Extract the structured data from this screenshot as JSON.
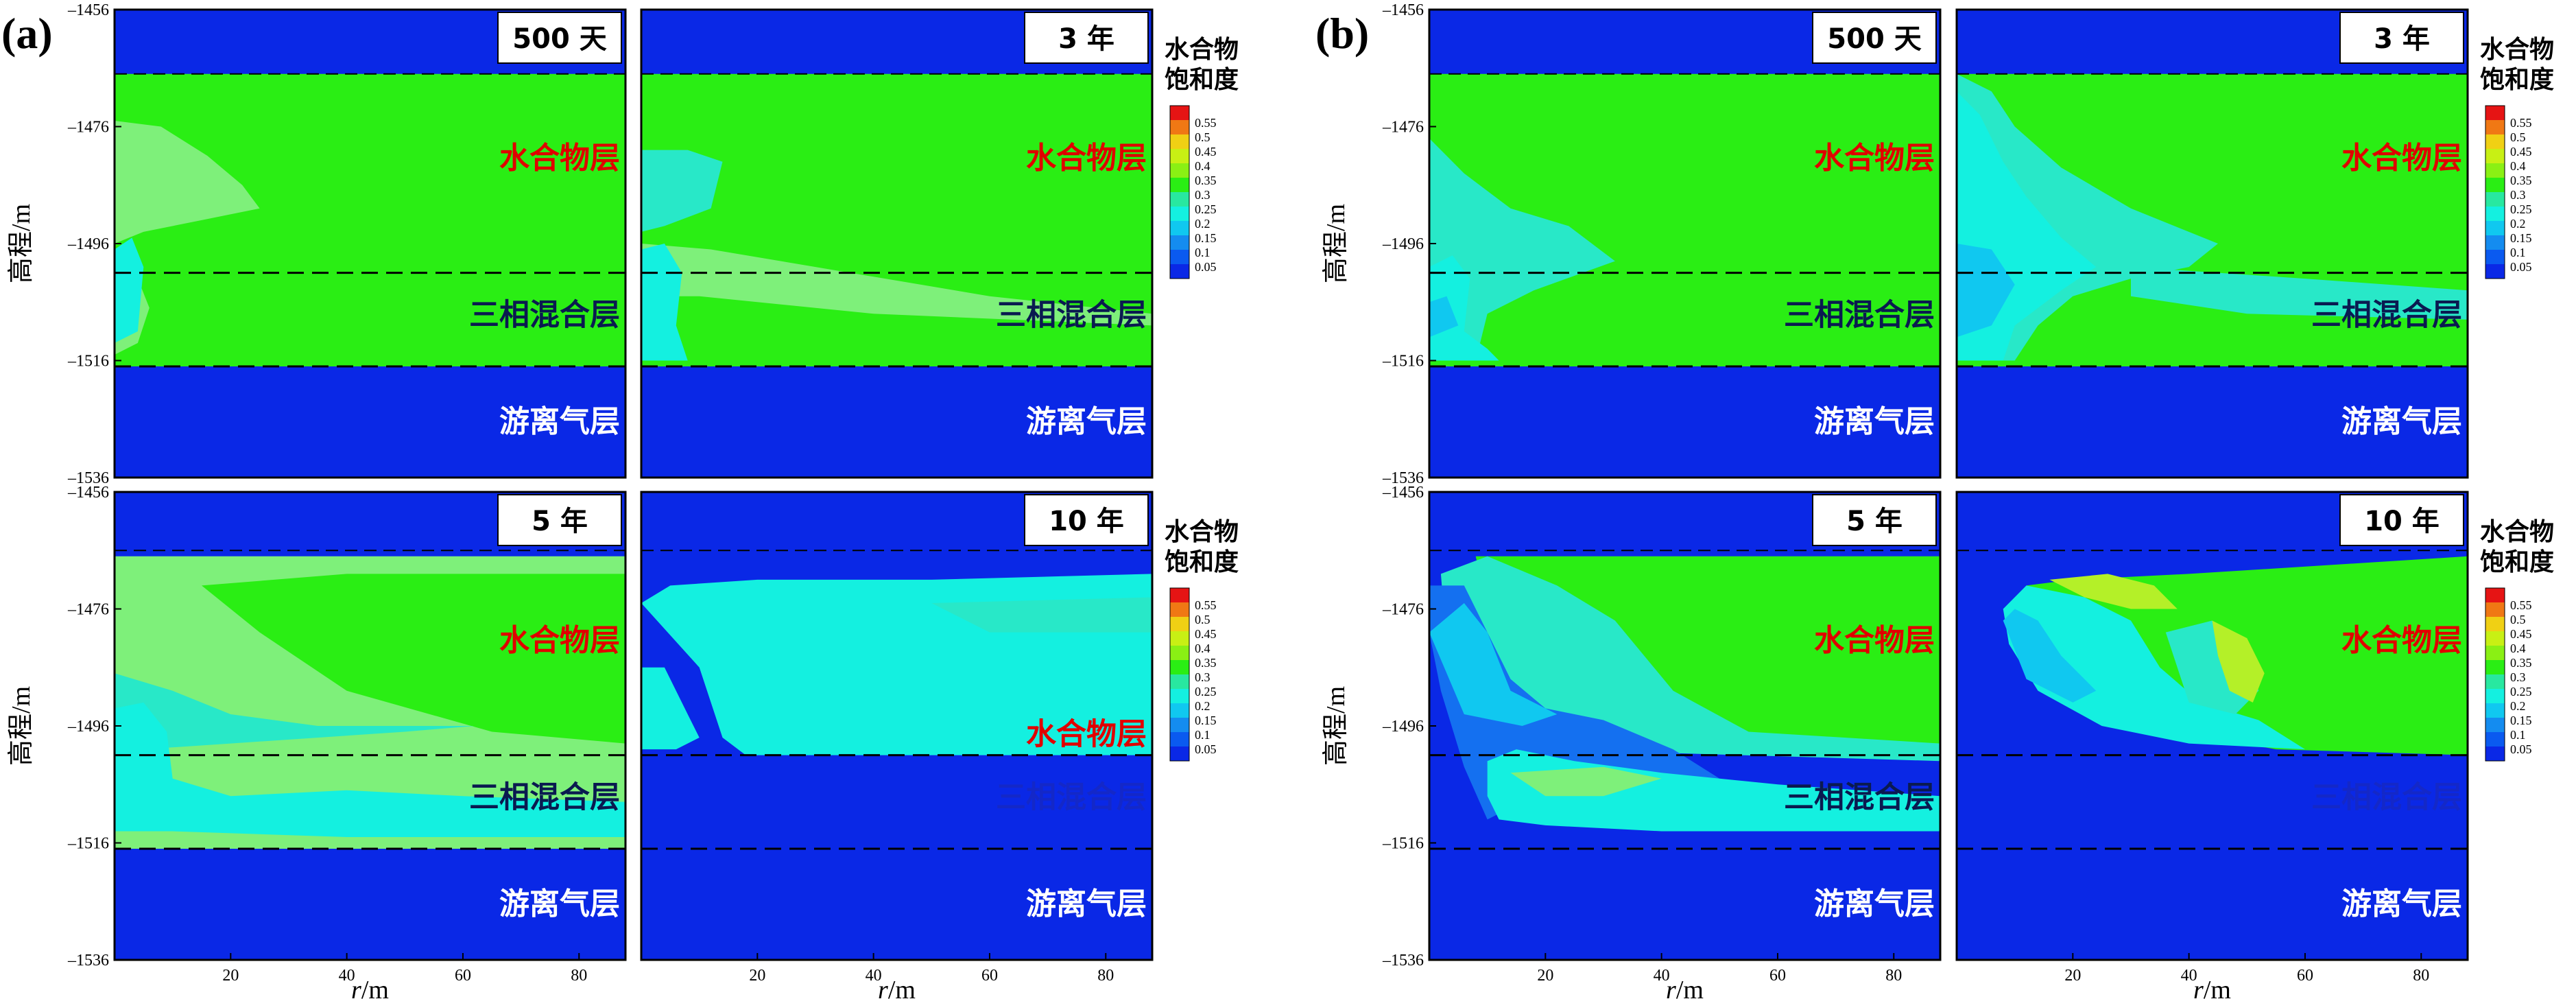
{
  "figure": {
    "panel_labels": [
      "(a)",
      "(b)"
    ],
    "y_axis_label": "高程/m",
    "x_axis_label_r": "r",
    "x_axis_label_unit": "/m",
    "colorbar_title_line1": "水合物",
    "colorbar_title_line2": "饱和度"
  },
  "colors": {
    "background": "#0a28e6",
    "hydrate": "#2aee14",
    "hydrate_light": "#7ef07a",
    "cyan": "#14f0e0",
    "light_cyan": "#28e8c8",
    "deep_cyan": "#10c8f0",
    "blue_mid": "#1470f0",
    "yellowgreen": "#b4f028",
    "hydrate_label_color": "#e00000",
    "mixed_label_color": "#0a1a50",
    "free_gas_label_color": "#ffffff"
  },
  "layer_labels": {
    "hydrate": "水合物层",
    "mixed": "三相混合层",
    "free_gas": "游离气层"
  },
  "chart_data": {
    "type": "heatmap",
    "variable": "水合物饱和度",
    "x_ticks": [
      20,
      40,
      60,
      80
    ],
    "x_range": [
      0,
      88
    ],
    "y_ticks": [
      -1456,
      -1476,
      -1496,
      -1516,
      -1536
    ],
    "y_range": [
      -1536,
      -1456
    ],
    "layer_boundaries": [
      -1467,
      -1501,
      -1517
    ],
    "colorbar": {
      "levels": [
        0.05,
        0.1,
        0.15,
        0.2,
        0.25,
        0.3,
        0.35,
        0.4,
        0.45,
        0.5,
        0.55
      ],
      "colors": [
        "#0a28e6",
        "#0a5af0",
        "#148cf0",
        "#10c8f0",
        "#14f0e0",
        "#28e8a0",
        "#2aee14",
        "#8af014",
        "#c8f014",
        "#f0d014",
        "#f07814",
        "#e61414"
      ]
    },
    "panels": [
      {
        "group": "(a)",
        "time": "500 天"
      },
      {
        "group": "(a)",
        "time": "3 年"
      },
      {
        "group": "(a)",
        "time": "5 年"
      },
      {
        "group": "(a)",
        "time": "10 年"
      },
      {
        "group": "(b)",
        "time": "500 天"
      },
      {
        "group": "(b)",
        "time": "3 年"
      },
      {
        "group": "(b)",
        "time": "5 年"
      },
      {
        "group": "(b)",
        "time": "10 年"
      }
    ]
  }
}
